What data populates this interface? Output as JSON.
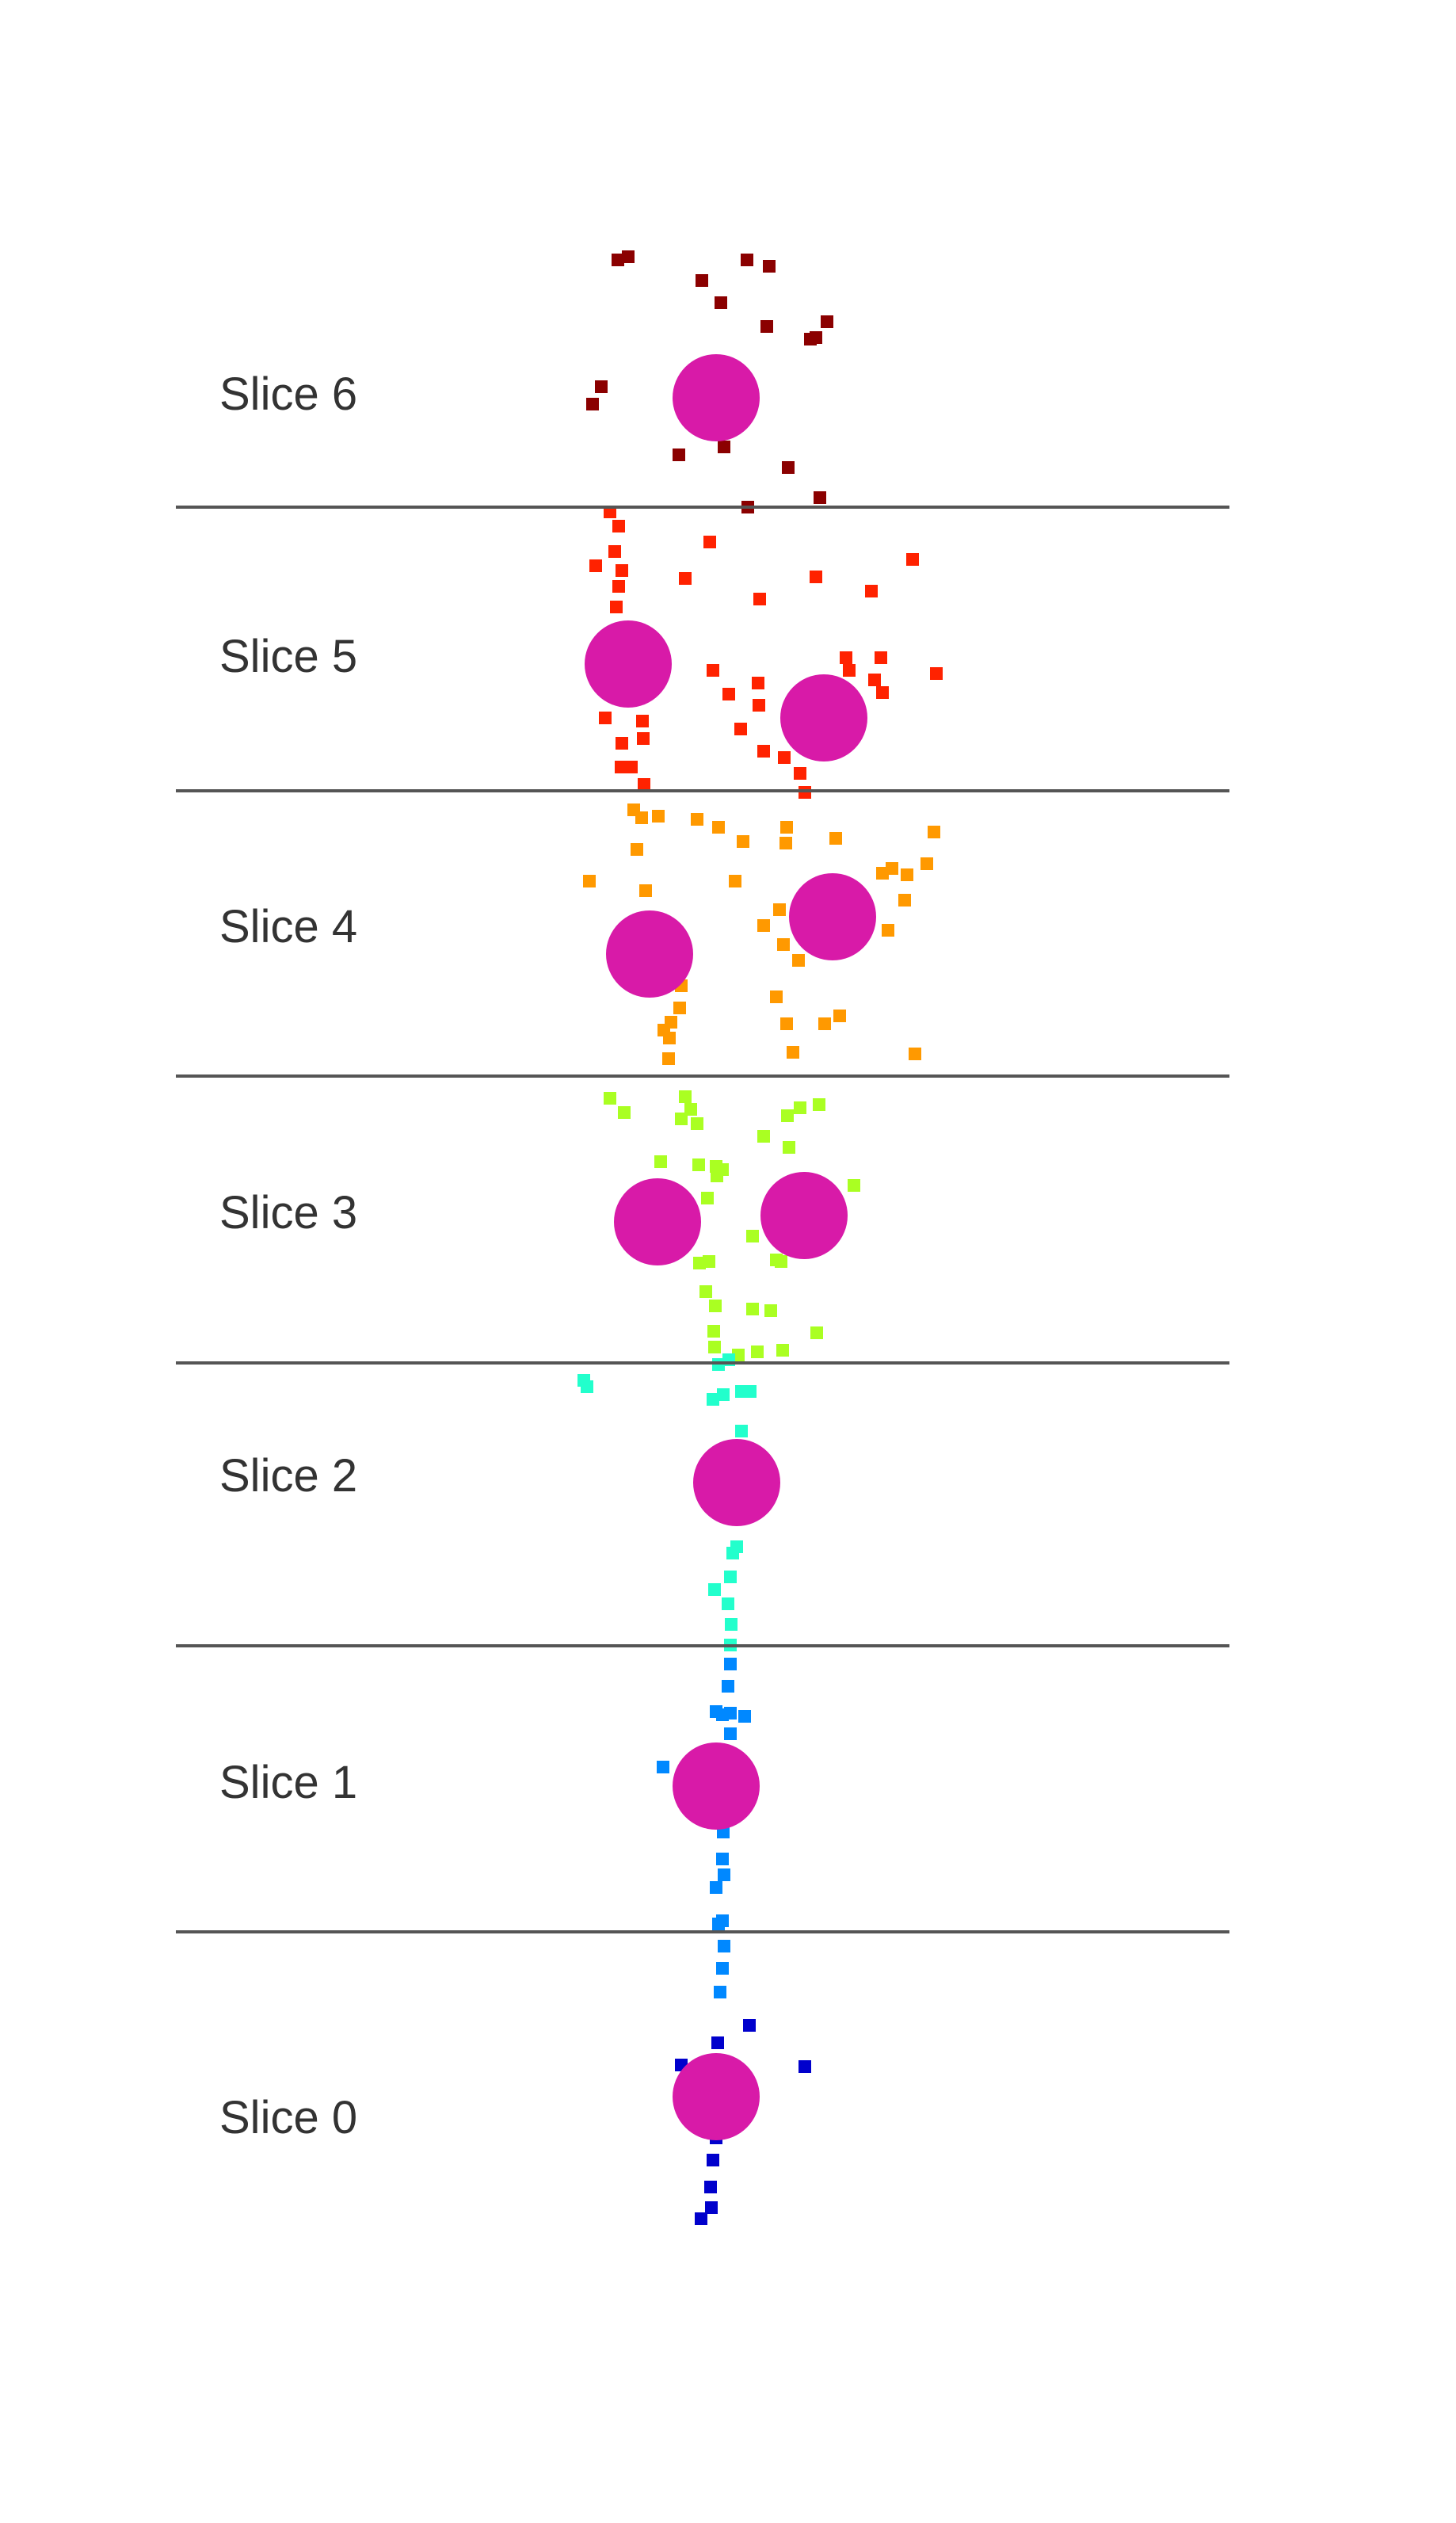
{
  "slices": [
    {
      "label": "Slice 6",
      "color": "#8b0000"
    },
    {
      "label": "Slice 5",
      "color": "#ff2200"
    },
    {
      "label": "Slice 4",
      "color": "#ff9900"
    },
    {
      "label": "Slice 3",
      "color": "#aaff22"
    },
    {
      "label": "Slice 2",
      "color": "#22ffcc"
    },
    {
      "label": "Slice 1",
      "color": "#0088ff"
    },
    {
      "label": "Slice 0",
      "color": "#0000cc"
    }
  ],
  "colors": {
    "centroid": "#d81aa8",
    "divider": "#555555",
    "label": "#333333",
    "background": "#ffffff"
  }
}
